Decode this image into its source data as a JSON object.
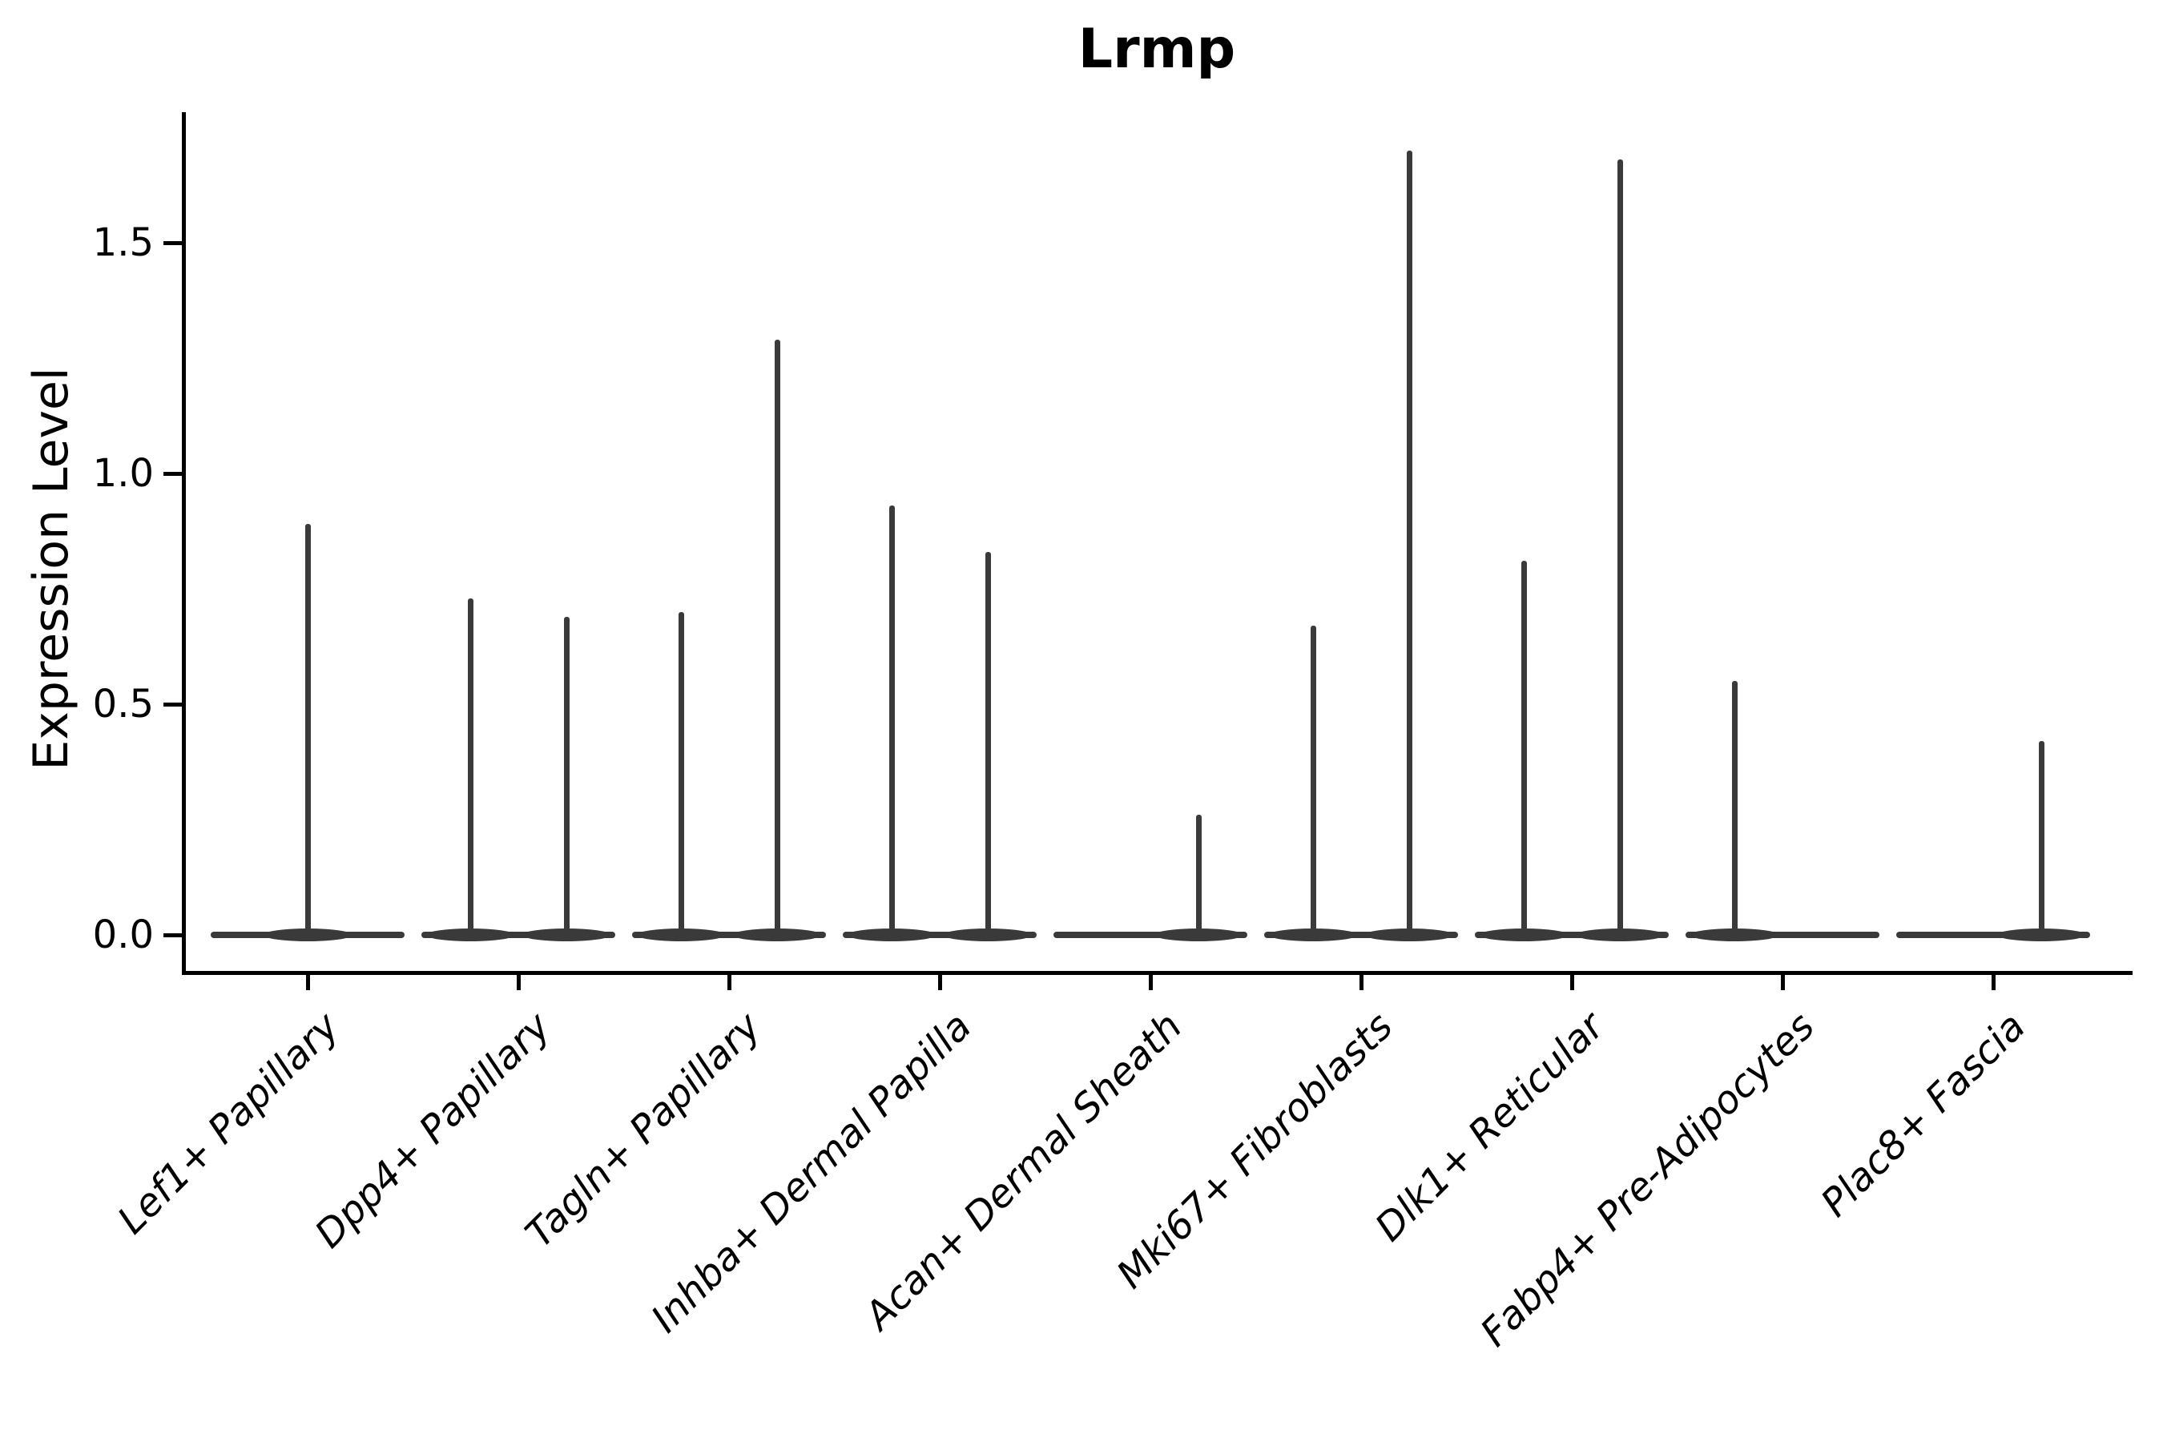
{
  "title": "Lrmp",
  "axes": {
    "y_label": "Expression Level",
    "y_tick_labels": [
      "0.0",
      "0.5",
      "1.0",
      "1.5"
    ],
    "x_labels": [
      "Lef1+ Papillary",
      "Dpp4+ Papillary",
      "Tagln+ Papillary",
      "Inhba+ Dermal Papilla",
      "Acan+ Dermal Sheath",
      "Mki67+ Fibroblasts",
      "Dlk1+ Reticular",
      "Fabp4+ Pre-Adipocytes",
      "Plac8+ Fascia"
    ]
  },
  "style": {
    "violin_color": "#3a3a3a",
    "axis_color": "#000000",
    "background": "#ffffff"
  },
  "chart_data": {
    "type": "violin",
    "title": "Lrmp",
    "ylabel": "Expression Level",
    "xlabel": "",
    "ylim": [
      -0.08,
      1.78
    ],
    "y_ticks": [
      0.0,
      0.5,
      1.0,
      1.5
    ],
    "grid": false,
    "legend": "none",
    "categories": [
      "Lef1+ Papillary",
      "Dpp4+ Papillary",
      "Tagln+ Papillary",
      "Inhba+ Dermal Papilla",
      "Acan+ Dermal Sheath",
      "Mki67+ Fibroblasts",
      "Dlk1+ Reticular",
      "Fabp4+ Pre-Adipocytes",
      "Plac8+ Fascia"
    ],
    "violins": [
      {
        "category": "Lef1+ Papillary",
        "groups": [
          {
            "slot": "full",
            "baseline": 0.0,
            "max": 0.89
          }
        ]
      },
      {
        "category": "Dpp4+ Papillary",
        "groups": [
          {
            "slot": "left",
            "baseline": 0.0,
            "max": 0.73
          },
          {
            "slot": "right",
            "baseline": 0.0,
            "max": 0.69
          }
        ]
      },
      {
        "category": "Tagln+ Papillary",
        "groups": [
          {
            "slot": "left",
            "baseline": 0.0,
            "max": 0.7
          },
          {
            "slot": "right",
            "baseline": 0.0,
            "max": 1.29
          }
        ]
      },
      {
        "category": "Inhba+ Dermal Papilla",
        "groups": [
          {
            "slot": "left",
            "baseline": 0.0,
            "max": 0.93
          },
          {
            "slot": "right",
            "baseline": 0.0,
            "max": 0.83
          }
        ]
      },
      {
        "category": "Acan+ Dermal Sheath",
        "groups": [
          {
            "slot": "left",
            "baseline": 0.0,
            "max": 0.0
          },
          {
            "slot": "right",
            "baseline": 0.0,
            "max": 0.26
          }
        ]
      },
      {
        "category": "Mki67+ Fibroblasts",
        "groups": [
          {
            "slot": "left",
            "baseline": 0.0,
            "max": 0.67
          },
          {
            "slot": "right",
            "baseline": 0.0,
            "max": 1.7
          }
        ]
      },
      {
        "category": "Dlk1+ Reticular",
        "groups": [
          {
            "slot": "left",
            "baseline": 0.0,
            "max": 0.81
          },
          {
            "slot": "right",
            "baseline": 0.0,
            "max": 1.68
          }
        ]
      },
      {
        "category": "Fabp4+ Pre-Adipocytes",
        "groups": [
          {
            "slot": "left",
            "baseline": 0.0,
            "max": 0.55
          },
          {
            "slot": "right",
            "baseline": 0.0,
            "max": 0.0
          }
        ]
      },
      {
        "category": "Plac8+ Fascia",
        "groups": [
          {
            "slot": "left",
            "baseline": 0.0,
            "max": 0.0
          },
          {
            "slot": "right",
            "baseline": 0.0,
            "max": 0.42
          }
        ]
      }
    ]
  }
}
